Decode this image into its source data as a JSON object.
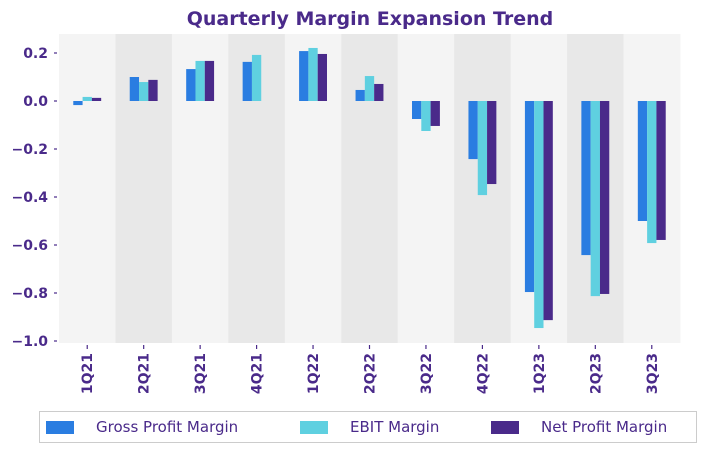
{
  "chart_data": {
    "type": "bar",
    "title": "Quarterly Margin Expansion Trend",
    "xlabel": "",
    "ylabel": "",
    "categories": [
      "1Q21",
      "2Q21",
      "3Q21",
      "4Q21",
      "1Q22",
      "2Q22",
      "3Q22",
      "4Q22",
      "1Q23",
      "2Q23",
      "3Q23"
    ],
    "series": [
      {
        "name": "Gross Profit Margin",
        "color": "#2a7de1",
        "values": [
          -0.017,
          0.1,
          0.133,
          0.163,
          0.208,
          0.046,
          -0.075,
          -0.242,
          -0.796,
          -0.642,
          -0.5
        ]
      },
      {
        "name": "EBIT Margin",
        "color": "#5fd0e0",
        "values": [
          0.017,
          0.079,
          0.167,
          0.192,
          0.221,
          0.104,
          -0.125,
          -0.392,
          -0.946,
          -0.813,
          -0.592
        ]
      },
      {
        "name": "Net Profit Margin",
        "color": "#4a2a8a",
        "values": [
          0.013,
          0.088,
          0.167,
          0.0,
          0.196,
          0.071,
          -0.104,
          -0.346,
          -0.913,
          -0.804,
          -0.579
        ]
      }
    ],
    "ylim": [
      -1.0,
      0.28
    ],
    "yticks": [
      0.2,
      0.0,
      -0.2,
      -0.4,
      -0.6,
      -0.8,
      -1.0
    ],
    "ytick_labels": [
      "0.2",
      "0.0",
      "−0.2",
      "−0.4",
      "−0.6",
      "−0.8",
      "−1.0"
    ],
    "grid": false,
    "band_colors": [
      "#f4f4f4",
      "#e8e8e8"
    ],
    "text_color": "#4a2a8a",
    "legend_position": "bottom"
  }
}
